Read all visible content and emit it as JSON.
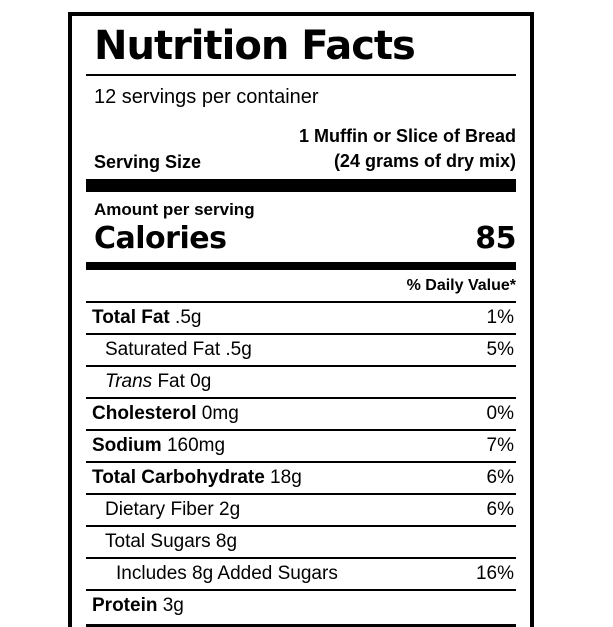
{
  "colors": {
    "text": "#000000",
    "background": "#ffffff",
    "border": "#000000"
  },
  "label": {
    "title": "Nutrition Facts",
    "servings_per_container": "12 servings per container",
    "serving_size_label": "Serving Size",
    "serving_size_line1": "1 Muffin or Slice of Bread",
    "serving_size_line2": "(24 grams of dry mix)",
    "amount_per_serving": "Amount per serving",
    "calories_label": "Calories",
    "calories_value": "85",
    "daily_value_header": "% Daily Value*",
    "rows": [
      {
        "parts": [
          {
            "t": "Total Fat",
            "b": true
          },
          {
            "t": " .5g"
          }
        ],
        "dv": "1%",
        "indent": 0
      },
      {
        "parts": [
          {
            "t": "Saturated Fat .5g"
          }
        ],
        "dv": "5%",
        "indent": 1
      },
      {
        "parts": [
          {
            "t": "Trans",
            "i": true
          },
          {
            "t": " Fat 0g"
          }
        ],
        "dv": "",
        "indent": 1
      },
      {
        "parts": [
          {
            "t": "Cholesterol",
            "b": true
          },
          {
            "t": " 0mg"
          }
        ],
        "dv": "0%",
        "indent": 0
      },
      {
        "parts": [
          {
            "t": "Sodium",
            "b": true
          },
          {
            "t": " 160mg"
          }
        ],
        "dv": "7%",
        "indent": 0
      },
      {
        "parts": [
          {
            "t": "Total Carbohydrate",
            "b": true
          },
          {
            "t": " 18g"
          }
        ],
        "dv": "6%",
        "indent": 0
      },
      {
        "parts": [
          {
            "t": "Dietary Fiber 2g"
          }
        ],
        "dv": "6%",
        "indent": 1
      },
      {
        "parts": [
          {
            "t": "Total Sugars 8g"
          }
        ],
        "dv": "",
        "indent": 1
      },
      {
        "parts": [
          {
            "t": "Includes 8g Added Sugars"
          }
        ],
        "dv": "16%",
        "indent": 2
      },
      {
        "parts": [
          {
            "t": "Protein",
            "b": true
          },
          {
            "t": " 3g"
          }
        ],
        "dv": "",
        "indent": 0
      }
    ]
  }
}
